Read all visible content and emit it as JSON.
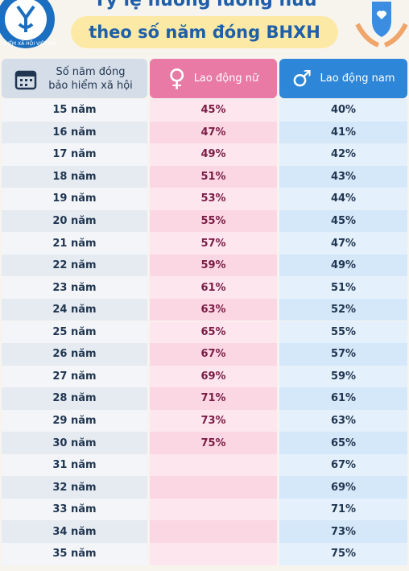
{
  "header": {
    "logo_text": "BẢO HIỂM XÃ HỘI VIỆT NAM",
    "title_line1": "Tỷ lệ hưởng lương hưu",
    "title_line2": "theo số năm đóng BHXH"
  },
  "table": {
    "columns": [
      "Số năm đóng bảo hiểm xã hội",
      "Lao động nữ",
      "Lao động nam"
    ],
    "rows": [
      [
        "15 năm",
        "45%",
        "40%"
      ],
      [
        "16 năm",
        "47%",
        "41%"
      ],
      [
        "17 năm",
        "49%",
        "42%"
      ],
      [
        "18 năm",
        "51%",
        "43%"
      ],
      [
        "19 năm",
        "53%",
        "44%"
      ],
      [
        "20 năm",
        "55%",
        "45%"
      ],
      [
        "21 năm",
        "57%",
        "47%"
      ],
      [
        "22 năm",
        "59%",
        "49%"
      ],
      [
        "23 năm",
        "61%",
        "51%"
      ],
      [
        "24 năm",
        "63%",
        "52%"
      ],
      [
        "25 năm",
        "65%",
        "55%"
      ],
      [
        "26 năm",
        "67%",
        "57%"
      ],
      [
        "27 năm",
        "69%",
        "59%"
      ],
      [
        "28 năm",
        "71%",
        "61%"
      ],
      [
        "29 năm",
        "73%",
        "63%"
      ],
      [
        "30 năm",
        "75%",
        "65%"
      ],
      [
        "31 năm",
        null,
        "67%"
      ],
      [
        "32 năm",
        null,
        "69%"
      ],
      [
        "33 năm",
        null,
        "71%"
      ],
      [
        "34 năm",
        null,
        "73%"
      ],
      [
        "35 năm",
        null,
        "75%"
      ]
    ]
  }
}
